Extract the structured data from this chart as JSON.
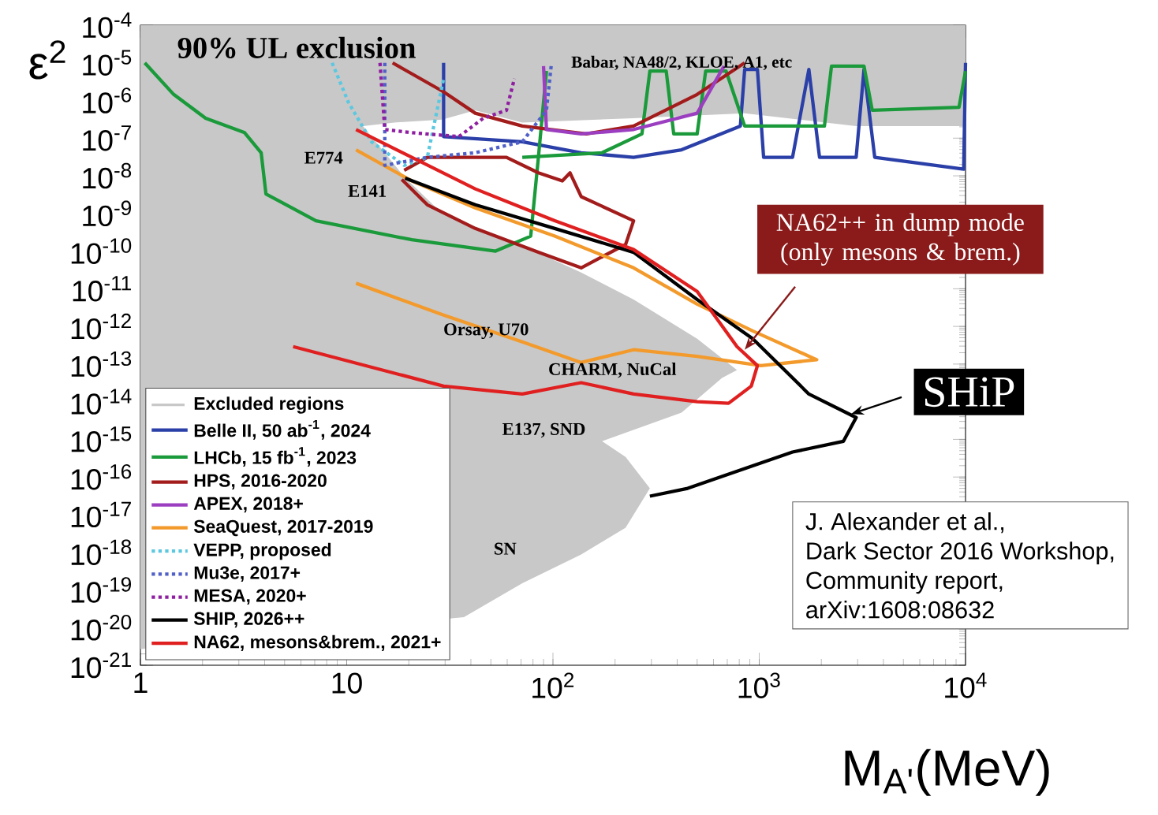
{
  "chart_data": {
    "type": "line",
    "log": "xy",
    "xlim": [
      1,
      10000
    ],
    "ylim": [
      1e-21,
      0.0001
    ],
    "xticks": [
      1,
      10,
      {
        "value": 100,
        "label": "10$^{2}$"
      },
      {
        "value": 1000,
        "label": "10$^{3}$"
      },
      {
        "value": 10000,
        "label": "10$^{4}$"
      }
    ],
    "yticks": [
      {
        "value": 1e-21,
        "label": "10$^{-21}$"
      },
      {
        "value": 1e-20,
        "label": "10$^{-20}$"
      },
      {
        "value": 1e-19,
        "label": "10$^{-19}$"
      },
      {
        "value": 1e-18,
        "label": "10$^{-18}$"
      },
      {
        "value": 1e-17,
        "label": "10$^{-17}$"
      },
      {
        "value": 1e-16,
        "label": "10$^{-16}$"
      },
      {
        "value": 1e-15,
        "label": "10$^{-15}$"
      },
      {
        "value": 1e-14,
        "label": "10$^{-14}$"
      },
      {
        "value": 1e-13,
        "label": "10$^{-13}$"
      },
      {
        "value": 1e-12,
        "label": "10$^{-12}$"
      },
      {
        "value": 1e-11,
        "label": "10$^{-11}$"
      },
      {
        "value": 1e-10,
        "label": "10$^{-10}$"
      },
      {
        "value": 1e-09,
        "label": "10$^{-9}$"
      },
      {
        "value": 1e-08,
        "label": "10$^{-8}$"
      },
      {
        "value": 1e-07,
        "label": "10$^{-7}$"
      },
      {
        "value": 1e-06,
        "label": "10$^{-6}$"
      },
      {
        "value": 1e-05,
        "label": "10$^{-5}$"
      },
      {
        "value": 0.0001,
        "label": "10$^{-4}$"
      }
    ],
    "xlabel": "M$_{A'}$(MeV)",
    "ylabel": "ε$^{2}$",
    "legend": "bottom left",
    "annotations": [
      "90% UL exclusion",
      "Babar, NA48/2, KLOE, A1, etc",
      "E774",
      "E141",
      "Orsay, U70",
      "CHARM, NuCal",
      "E137, SND",
      "SN",
      {
        "text": "NA62++ in dump mode (only mesons & brem.)",
        "x": 850,
        "y": 2.4e-13
      },
      {
        "text": "SHiP",
        "x": 2790,
        "y": 4.7e-15
      },
      "J. Alexander et al.,",
      "Dark Sector 2016 Workshop,",
      "Community report,",
      "arXiv:1608:08632"
    ],
    "series": [
      {
        "name": "Excluded regions",
        "type": "area",
        "color": "#c8c8c8",
        "x": [
          1,
          10000,
          10000,
          2950,
          850,
          246,
          71,
          42,
          29,
          17,
          12,
          19,
          29,
          78,
          137,
          246,
          500,
          780,
          660,
          420,
          173,
          225,
          295,
          225,
          137,
          71,
          37,
          1
        ],
        "values": [
          0.0001,
          0.0001,
          2.1e-07,
          2.1e-07,
          4.6e-07,
          3.4e-07,
          2.6e-07,
          5.5e-07,
          3.1e-07,
          2.6e-07,
          2.1e-07,
          9.5e-09,
          1e-09,
          1.1e-10,
          2.7e-11,
          5.2e-12,
          4.7e-13,
          6.9e-14,
          4.3e-14,
          5.1e-15,
          8.9e-16,
          3.4e-16,
          5e-17,
          4.5e-18,
          8.7e-19,
          1.5e-19,
          1.9e-20,
          2.7e-21
        ]
      },
      {
        "name": "Belle II, 50 ab$^{-1}$, 2024",
        "color": "#2b3fa8",
        "line_style": "solid",
        "x": [
          29.5,
          29.5,
          71,
          137,
          246,
          420,
          810,
          850,
          980,
          1050,
          1450,
          1740,
          1960,
          2950,
          3220,
          3630,
          9800,
          10000
        ],
        "values": [
          1e-05,
          1.1e-07,
          8e-08,
          4.1e-08,
          3.1e-08,
          4.9e-08,
          2.1e-07,
          6.7e-06,
          6.7e-06,
          3.1e-08,
          3.1e-08,
          6.7e-06,
          3.1e-08,
          3.1e-08,
          6.7e-06,
          3.1e-08,
          1.5e-08,
          1e-05
        ]
      },
      {
        "name": "LHCb, 15 fb$^{-1}$, 2023",
        "color": "#1a9a3a",
        "line_style": "solid",
        "x": [
          1.05,
          1.45,
          2.07,
          3.2,
          3.85,
          4.06,
          7.1,
          20.7,
          52.7,
          78,
          85,
          93,
          null,
          71,
          173,
          270,
          295,
          354,
          385,
          500,
          550,
          690,
          850,
          2070,
          2240,
          3220,
          3530,
          9300,
          10000
        ],
        "values": [
          1e-05,
          1.45e-06,
          3.4e-07,
          1.4e-07,
          4.1e-08,
          3.3e-09,
          6.4e-10,
          2e-10,
          1e-10,
          2.5e-10,
          3.1e-08,
          6.1e-06,
          null,
          3.1e-08,
          4.1e-08,
          1.3e-07,
          6.1e-06,
          6.1e-06,
          1.3e-07,
          1.3e-07,
          6.1e-06,
          6.1e-06,
          2.1e-07,
          2.1e-07,
          8.2e-06,
          8.2e-06,
          5.5e-07,
          6.6e-07,
          6.1e-06
        ]
      },
      {
        "name": "HPS, 2016-2020",
        "color": "#a31c1c",
        "line_style": "solid",
        "x": [
          16.7,
          29.5,
          42,
          71,
          145,
          246,
          500,
          850,
          null,
          19,
          24.6,
          35,
          59.5,
          85,
          111,
          121,
          137,
          246,
          225,
          137,
          85,
          42,
          24.6,
          18.5
        ],
        "values": [
          1e-05,
          1.7e-06,
          4.6e-07,
          2.1e-07,
          1.3e-07,
          2.1e-07,
          1.45e-06,
          1e-05,
          null,
          1.4e-08,
          3.1e-08,
          3.1e-08,
          3.1e-08,
          1.2e-08,
          7.3e-09,
          1.2e-08,
          2.8e-09,
          6.4e-10,
          1.5e-10,
          3.6e-11,
          9.3e-11,
          4e-10,
          1.7e-09,
          8e-09
        ]
      },
      {
        "name": "APEX, 2018+",
        "color": "#9b3fc0",
        "line_style": "solid",
        "x": [
          90,
          93,
          137,
          246,
          500,
          675
        ],
        "values": [
          8.2e-06,
          1.7e-07,
          1.3e-07,
          1.7e-07,
          4.6e-07,
          8.2e-06
        ]
      },
      {
        "name": "SeaQuest, 2017-2019",
        "color": "#f39a2c",
        "line_style": "solid",
        "x": [
          11.1,
          20.7,
          42,
          102,
          246,
          500,
          930,
          1900,
          1020,
          500,
          246,
          137,
          71,
          29.5,
          11.1
        ],
        "values": [
          4.9e-08,
          7.3e-09,
          1.4e-09,
          2.5e-10,
          3.6e-11,
          3.9e-12,
          7.6e-13,
          1.3e-13,
          9.1e-14,
          1.6e-13,
          2.4e-13,
          1.1e-13,
          3.9e-13,
          2e-12,
          1.4e-11
        ]
      },
      {
        "name": "VEPP, proposed",
        "color": "#5bc8e0",
        "line_style": "dotted",
        "x": [
          8.5,
          10.2,
          13.2,
          19,
          24.6,
          29.5
        ],
        "values": [
          1e-05,
          8.9e-07,
          8e-08,
          1.9e-08,
          3.1e-08,
          3.8e-06
        ]
      },
      {
        "name": "Mu3e, 2017+",
        "color": "#5060c8",
        "line_style": "dotted",
        "x": [
          15.3,
          15.3,
          24.6,
          42,
          71,
          93,
          98
        ],
        "values": [
          1e-05,
          1.9e-08,
          3.1e-08,
          4.1e-08,
          8e-08,
          5.5e-07,
          8.2e-06
        ]
      },
      {
        "name": "MESA, 2020+",
        "color": "#8e1fa0",
        "line_style": "dotted",
        "x": [
          14.5,
          15.3,
          20.7,
          35,
          46,
          59.5,
          65
        ],
        "values": [
          1e-05,
          1.7e-07,
          1.4e-07,
          1.1e-07,
          3.4e-07,
          5.5e-07,
          3.8e-06
        ]
      },
      {
        "name": "SHIP, 2026++",
        "color": "#000000",
        "line_style": "solid",
        "x": [
          19.2,
          42,
          102,
          246,
          500,
          930,
          1740,
          2950,
          2560,
          1450,
          450,
          295
        ],
        "values": [
          8.7e-09,
          1.7e-09,
          4e-10,
          9.3e-11,
          5.2e-12,
          4.7e-13,
          1.6e-14,
          3.8e-15,
          8.9e-16,
          4.6e-16,
          5e-17,
          3.1e-17
        ]
      },
      {
        "name": "NA62, mesons&brem., 2021+",
        "color": "#e02020",
        "line_style": "solid",
        "x": [
          11.1,
          20.7,
          42,
          102,
          246,
          500,
          780,
          980,
          915,
          710,
          500,
          246,
          137,
          71,
          29.5,
          5.5
        ],
        "values": [
          1.7e-07,
          3.1e-08,
          4.5e-09,
          6.4e-10,
          1.1e-10,
          8.5e-12,
          2.9e-13,
          9.1e-14,
          2.6e-14,
          9.1e-15,
          1e-14,
          1.6e-14,
          3.2e-14,
          1.6e-14,
          2.6e-14,
          2.9e-13
        ]
      }
    ]
  }
}
